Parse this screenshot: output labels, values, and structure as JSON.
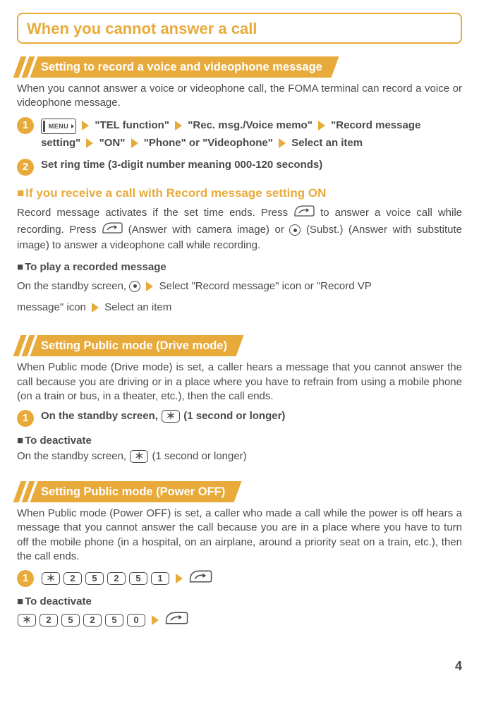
{
  "title": "When you cannot answer a call",
  "banner1": "Setting to record a voice and videophone message",
  "p1": "When you cannot answer a voice or videophone call, the FOMA terminal can record a voice or videophone message.",
  "step1": {
    "menu_label": "MENU",
    "parts": [
      "\"TEL function\"",
      "\"Rec. msg./Voice memo\"",
      "\"Record message setting\"",
      "\"ON\"",
      "\"Phone\" or \"Videophone\"",
      "Select an item"
    ]
  },
  "step2": "Set ring time (3-digit number meaning 000-120 seconds)",
  "sub1": "If you receive a call with Record message setting ON",
  "p2a": "Record message activates if the set time ends. Press ",
  "p2b": " to answer a voice call while recording. Press ",
  "p2c": " (Answer with camera image) or ",
  "p2d": " (Subst.) (Answer with substitute image) to answer a videophone call while recording.",
  "mini_play": "To play a recorded message",
  "play_a": "On the standby screen, ",
  "play_b": "Select \"Record message\" icon or \"Record VP",
  "play_c": "message\" icon",
  "play_d": "Select an item",
  "banner2": "Setting Public mode (Drive mode)",
  "p3": "When Public mode (Drive mode) is set, a caller hears a message that you cannot answer the call because you are driving or in a place where you have to refrain from using a mobile phone (on a train or bus, in a theater, etc.), then the call ends.",
  "drive_step": {
    "pre": "On the standby screen, ",
    "post": " (1 second or longer)"
  },
  "mini_deact": "To deactivate",
  "deact_drive_a": "On the standby screen, ",
  "deact_drive_b": " (1 second or longer)",
  "banner3": "Setting Public mode (Power OFF)",
  "p4": "When Public mode (Power OFF) is set, a caller who made a call while the power is off hears a message that you cannot answer the call because you are in a place where you have to turn off the mobile phone (in a hospital, on an airplane, around a priority seat on a train, etc.), then the call ends.",
  "poweroff_keys": [
    "＊",
    "2",
    "5",
    "2",
    "5",
    "1"
  ],
  "poweroff_deact_keys": [
    "＊",
    "2",
    "5",
    "2",
    "5",
    "0"
  ],
  "page_number": "4"
}
